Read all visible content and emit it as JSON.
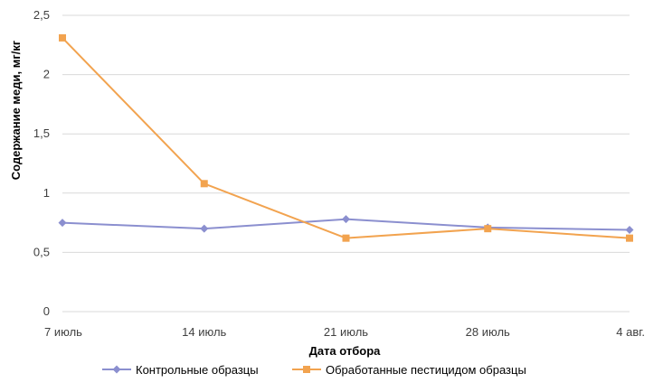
{
  "chart_data": {
    "type": "line",
    "categories": [
      "7 июль",
      "14 июль",
      "21 июль",
      "28 июль",
      "4 авг."
    ],
    "xlabel": "Дата отбора",
    "ylabel": "Содержание меди, мг/кг",
    "ylim": [
      0,
      2.5
    ],
    "yticks": [
      "0",
      "0,5",
      "1",
      "1,5",
      "2",
      "2,5"
    ],
    "grid": true,
    "legend_position": "bottom",
    "series": [
      {
        "name": "Контрольные образцы",
        "values": [
          0.75,
          0.7,
          0.78,
          0.71,
          0.69
        ],
        "color": "#8b8fcf",
        "marker": "diamond"
      },
      {
        "name": "Обработанные пестицидом образцы",
        "values": [
          2.31,
          1.08,
          0.62,
          0.7,
          0.62
        ],
        "color": "#f2a34f",
        "marker": "square"
      }
    ]
  }
}
